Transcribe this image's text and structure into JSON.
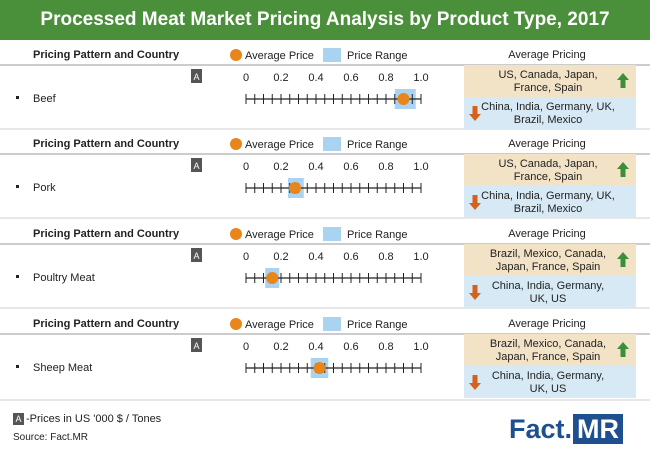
{
  "title": "Processed Meat Market Pricing Analysis by Product Type, 2017",
  "headers": {
    "pattern": "Pricing Pattern and Country",
    "avg_legend": "Average Price",
    "range_legend": "Price Range",
    "avg_pricing": "Average Pricing"
  },
  "a_marker": "A",
  "footer_note": "-Prices in US '000 $ / Tones",
  "source": "Source: Fact.MR",
  "logo": {
    "fact": "Fact",
    "dot": ".",
    "mr": "MR"
  },
  "colors": {
    "title_bg": "#4a8f3a",
    "avg_marker": "#e9861b",
    "range_fill": "#a9d3f0",
    "high_bg": "#f2e3c7",
    "low_bg": "#d6e9f4",
    "up_arrow": "#3b8f3a",
    "down_arrow": "#d6611c",
    "logo": "#1e4f8f"
  },
  "chart_data": {
    "type": "range-dot",
    "title": "Processed Meat Market Pricing Analysis by Product Type, 2017",
    "axis": {
      "min": 0,
      "max": 1.0,
      "ticks": [
        "0",
        "0.2",
        "0.4",
        "0.6",
        "0.8",
        "1.0"
      ]
    },
    "unit": "Prices in US '000 $ / Tones",
    "products": [
      {
        "name": "Beef",
        "avg": 0.9,
        "range": [
          0.85,
          0.97
        ],
        "high": "US, Canada, Japan, France, Spain",
        "low": "China, India, Germany, UK, Brazil, Mexico"
      },
      {
        "name": "Pork",
        "avg": 0.28,
        "range": [
          0.24,
          0.33
        ],
        "high": "US, Canada, Japan, France, Spain",
        "low": "China, India, Germany, UK, Brazil, Mexico"
      },
      {
        "name": "Poultry Meat",
        "avg": 0.15,
        "range": [
          0.11,
          0.19
        ],
        "high": "Brazil, Mexico, Canada, Japan, France, Spain",
        "low": "China, India, Germany, UK, US"
      },
      {
        "name": "Sheep Meat",
        "avg": 0.42,
        "range": [
          0.37,
          0.47
        ],
        "high": "Brazil, Mexico, Canada, Japan, France, Spain",
        "low": "China, India, Germany, UK, US"
      }
    ]
  }
}
